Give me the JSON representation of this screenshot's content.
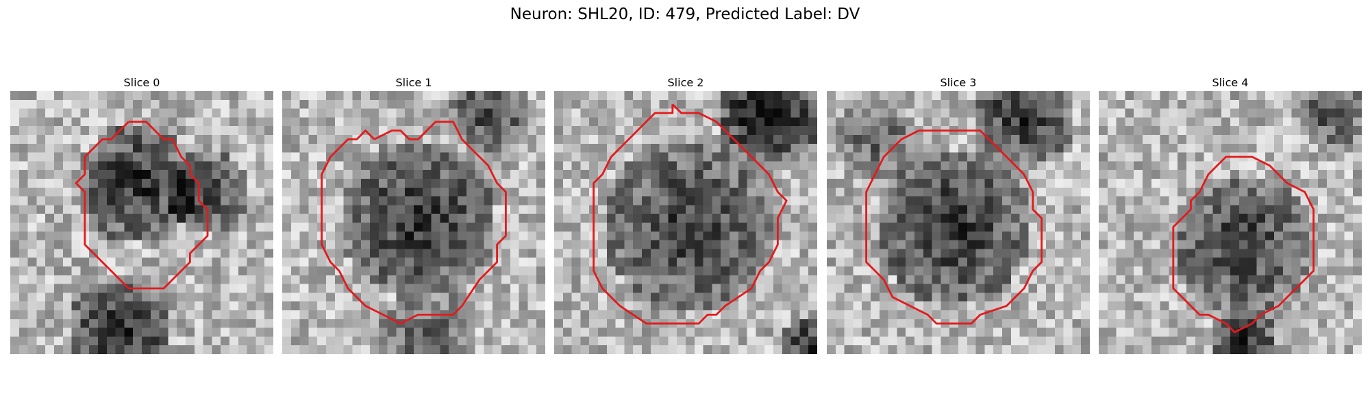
{
  "figure": {
    "title": "Neuron: SHL20, ID: 479, Predicted Label: DV",
    "contour_color": "#e31a1c",
    "colormap": "grayscale"
  },
  "panels": [
    {
      "title": "Slice 0",
      "contour": [
        [
          13.5,
          3.5
        ],
        [
          15.5,
          3.5
        ],
        [
          17.5,
          5.5
        ],
        [
          18.5,
          5.5
        ],
        [
          19.5,
          7.5
        ],
        [
          20.5,
          8.5
        ],
        [
          20.5,
          9.5
        ],
        [
          21.5,
          10.5
        ],
        [
          21.5,
          12.5
        ],
        [
          22.5,
          13.5
        ],
        [
          22.5,
          16.5
        ],
        [
          21.5,
          17.5
        ],
        [
          20.5,
          18.5
        ],
        [
          20.5,
          19.5
        ],
        [
          17.5,
          22.5
        ],
        [
          13.5,
          22.5
        ],
        [
          11.5,
          20.5
        ],
        [
          10.5,
          19.5
        ],
        [
          9.5,
          18.5
        ],
        [
          8.5,
          17.5
        ],
        [
          8.5,
          11.5
        ],
        [
          7.5,
          10.5
        ],
        [
          8.5,
          9.5
        ],
        [
          8.5,
          7.5
        ],
        [
          9.5,
          6.5
        ],
        [
          10.5,
          5.5
        ],
        [
          11.5,
          5.5
        ],
        [
          13.5,
          3.5
        ]
      ],
      "dark_regions": [
        {
          "cx": 14,
          "cy": 10,
          "r": 7,
          "d": 0.55
        },
        {
          "cx": 22,
          "cy": 11,
          "r": 5,
          "d": 0.45
        },
        {
          "cx": 12,
          "cy": 27,
          "r": 6,
          "d": 0.6
        }
      ]
    },
    {
      "title": "Slice 1",
      "contour": [
        [
          10.5,
          5.5
        ],
        [
          12.5,
          4.5
        ],
        [
          13.5,
          4.5
        ],
        [
          14.5,
          5.5
        ],
        [
          15.5,
          5.5
        ],
        [
          17.5,
          3.5
        ],
        [
          19.5,
          3.5
        ],
        [
          20.5,
          5.5
        ],
        [
          21.5,
          6.5
        ],
        [
          22.5,
          7.5
        ],
        [
          23.5,
          8.5
        ],
        [
          24.5,
          10.5
        ],
        [
          25.5,
          11.5
        ],
        [
          25.5,
          16.5
        ],
        [
          24.5,
          17.5
        ],
        [
          24.5,
          19.5
        ],
        [
          22.5,
          21.5
        ],
        [
          20.5,
          24.5
        ],
        [
          19.5,
          25.5
        ],
        [
          15.5,
          25.5
        ],
        [
          13.5,
          26.5
        ],
        [
          11.5,
          25.5
        ],
        [
          9.5,
          24.5
        ],
        [
          7.5,
          22.5
        ],
        [
          6.5,
          20.5
        ],
        [
          5.5,
          19.5
        ],
        [
          4.5,
          17.5
        ],
        [
          4.5,
          9.5
        ],
        [
          5.5,
          7.5
        ],
        [
          6.5,
          6.5
        ],
        [
          7.5,
          5.5
        ],
        [
          8.5,
          5.5
        ],
        [
          9.5,
          4.5
        ],
        [
          10.5,
          5.5
        ]
      ],
      "dark_regions": [
        {
          "cx": 15,
          "cy": 14,
          "r": 9,
          "d": 0.55
        },
        {
          "cx": 23,
          "cy": 2,
          "r": 5,
          "d": 0.45
        },
        {
          "cx": 16,
          "cy": 28,
          "r": 6,
          "d": 0.35
        }
      ]
    },
    {
      "title": "Slice 2",
      "contour": [
        [
          13.5,
          1.5
        ],
        [
          14.5,
          2.5
        ],
        [
          16.5,
          2.5
        ],
        [
          18.5,
          3.5
        ],
        [
          20.5,
          5.5
        ],
        [
          22.5,
          7.5
        ],
        [
          24.5,
          9.5
        ],
        [
          25.5,
          11.5
        ],
        [
          26.5,
          12.5
        ],
        [
          25.5,
          14.5
        ],
        [
          25.5,
          17.5
        ],
        [
          24.5,
          19.5
        ],
        [
          23.5,
          20.5
        ],
        [
          22.5,
          22.5
        ],
        [
          19.5,
          24.5
        ],
        [
          18.5,
          25.5
        ],
        [
          17.5,
          25.5
        ],
        [
          16.5,
          26.5
        ],
        [
          10.5,
          26.5
        ],
        [
          7.5,
          24.5
        ],
        [
          5.5,
          22.5
        ],
        [
          4.5,
          20.5
        ],
        [
          4.5,
          10.5
        ],
        [
          5.5,
          9.5
        ],
        [
          6.5,
          7.5
        ],
        [
          8.5,
          5.5
        ],
        [
          10.5,
          3.5
        ],
        [
          11.5,
          2.5
        ],
        [
          13.5,
          2.5
        ],
        [
          13.5,
          1.5
        ]
      ],
      "dark_regions": [
        {
          "cx": 15,
          "cy": 15,
          "r": 10,
          "d": 0.5
        },
        {
          "cx": 24,
          "cy": 2,
          "r": 6,
          "d": 0.7
        },
        {
          "cx": 29,
          "cy": 29,
          "r": 4,
          "d": 0.6
        }
      ]
    },
    {
      "title": "Slice 3",
      "contour": [
        [
          10.5,
          4.5
        ],
        [
          17.5,
          4.5
        ],
        [
          19.5,
          6.5
        ],
        [
          20.5,
          7.5
        ],
        [
          21.5,
          8.5
        ],
        [
          22.5,
          9.5
        ],
        [
          23.5,
          11.5
        ],
        [
          23.5,
          13.5
        ],
        [
          24.5,
          14.5
        ],
        [
          24.5,
          19.5
        ],
        [
          23.5,
          20.5
        ],
        [
          22.5,
          22.5
        ],
        [
          21.5,
          23.5
        ],
        [
          20.5,
          24.5
        ],
        [
          17.5,
          25.5
        ],
        [
          16.5,
          26.5
        ],
        [
          12.5,
          26.5
        ],
        [
          11.5,
          25.5
        ],
        [
          9.5,
          24.5
        ],
        [
          7.5,
          23.5
        ],
        [
          6.5,
          21.5
        ],
        [
          5.5,
          20.5
        ],
        [
          4.5,
          19.5
        ],
        [
          4.5,
          11.5
        ],
        [
          5.5,
          9.5
        ],
        [
          6.5,
          7.5
        ],
        [
          7.5,
          6.5
        ],
        [
          8.5,
          5.5
        ],
        [
          10.5,
          4.5
        ]
      ],
      "dark_regions": [
        {
          "cx": 14,
          "cy": 15,
          "r": 9,
          "d": 0.55
        },
        {
          "cx": 22,
          "cy": 2,
          "r": 6,
          "d": 0.55
        },
        {
          "cx": 5,
          "cy": 5,
          "r": 5,
          "d": 0.35
        }
      ]
    },
    {
      "title": "Slice 4",
      "contour": [
        [
          16.5,
          7.5
        ],
        [
          17.5,
          7.5
        ],
        [
          19.5,
          8.5
        ],
        [
          20.5,
          9.5
        ],
        [
          21.5,
          10.5
        ],
        [
          23.5,
          11.5
        ],
        [
          24.5,
          13.5
        ],
        [
          24.5,
          20.5
        ],
        [
          22.5,
          22.5
        ],
        [
          21.5,
          23.5
        ],
        [
          20.5,
          24.5
        ],
        [
          18.5,
          25.5
        ],
        [
          17.5,
          26.5
        ],
        [
          15.5,
          27.5
        ],
        [
          14.5,
          26.5
        ],
        [
          12.5,
          25.5
        ],
        [
          11.5,
          25.5
        ],
        [
          10.5,
          24.5
        ],
        [
          9.5,
          23.5
        ],
        [
          8.5,
          22.5
        ],
        [
          8.5,
          19.5
        ],
        [
          8.5,
          15.5
        ],
        [
          9.5,
          14.5
        ],
        [
          10.5,
          13.5
        ],
        [
          10.5,
          12.5
        ],
        [
          11.5,
          11.5
        ],
        [
          12.5,
          9.5
        ],
        [
          13.5,
          8.5
        ],
        [
          14.5,
          7.5
        ],
        [
          16.5,
          7.5
        ]
      ],
      "dark_regions": [
        {
          "cx": 16,
          "cy": 17,
          "r": 8,
          "d": 0.5
        },
        {
          "cx": 16,
          "cy": 28,
          "r": 4,
          "d": 0.6
        },
        {
          "cx": 26,
          "cy": 2,
          "r": 4,
          "d": 0.45
        }
      ]
    }
  ]
}
